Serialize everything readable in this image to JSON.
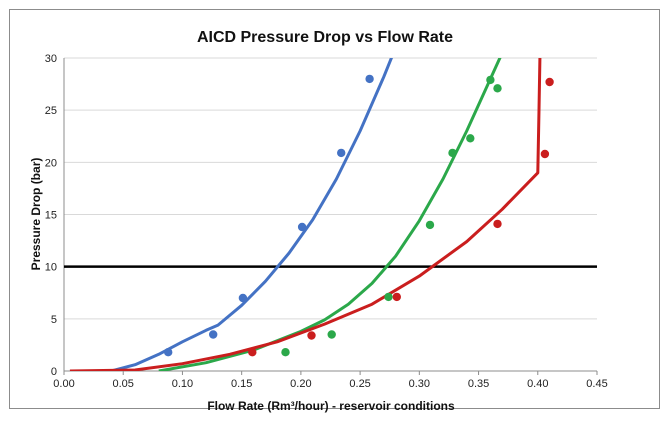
{
  "chart_data": {
    "type": "scatter",
    "title": "AICD Pressure Drop vs Flow Rate",
    "xlabel": "Flow Rate (Rm³/hour) - reservoir conditions",
    "ylabel": "Pressure Drop (bar)",
    "xlim": [
      0,
      0.45
    ],
    "ylim": [
      0,
      30
    ],
    "x_ticks": [
      "0.00",
      "0.05",
      "0.10",
      "0.15",
      "0.20",
      "0.25",
      "0.30",
      "0.35",
      "0.40",
      "0.45"
    ],
    "y_ticks": [
      "0",
      "5",
      "10",
      "15",
      "20",
      "25",
      "30"
    ],
    "grid": "horizontal",
    "legend": "none",
    "reference_line": {
      "y": 10,
      "color": "#000000"
    },
    "series": [
      {
        "color": "#4472c4",
        "points": [
          [
            0.088,
            1.8
          ],
          [
            0.126,
            3.5
          ],
          [
            0.151,
            7.0
          ],
          [
            0.201,
            13.8
          ],
          [
            0.234,
            20.9
          ],
          [
            0.258,
            28.0
          ]
        ],
        "curve": [
          [
            0.04,
            0
          ],
          [
            0.06,
            0.6
          ],
          [
            0.08,
            1.6
          ],
          [
            0.1,
            2.8
          ],
          [
            0.12,
            3.9
          ],
          [
            0.13,
            4.4
          ],
          [
            0.15,
            6.3
          ],
          [
            0.17,
            8.6
          ],
          [
            0.19,
            11.3
          ],
          [
            0.21,
            14.5
          ],
          [
            0.23,
            18.4
          ],
          [
            0.25,
            23.0
          ],
          [
            0.27,
            28.2
          ],
          [
            0.28,
            31.0
          ]
        ]
      },
      {
        "color": "#2ba84a",
        "points": [
          [
            0.187,
            1.8
          ],
          [
            0.226,
            3.5
          ],
          [
            0.274,
            7.1
          ],
          [
            0.309,
            14.0
          ],
          [
            0.328,
            20.9
          ],
          [
            0.343,
            22.3
          ],
          [
            0.36,
            27.9
          ],
          [
            0.366,
            27.1
          ]
        ],
        "curve": [
          [
            0.08,
            0
          ],
          [
            0.12,
            0.8
          ],
          [
            0.16,
            2.0
          ],
          [
            0.2,
            3.8
          ],
          [
            0.22,
            4.9
          ],
          [
            0.24,
            6.4
          ],
          [
            0.26,
            8.4
          ],
          [
            0.28,
            11.0
          ],
          [
            0.3,
            14.4
          ],
          [
            0.32,
            18.4
          ],
          [
            0.34,
            23.0
          ],
          [
            0.36,
            28.0
          ],
          [
            0.372,
            31.0
          ]
        ]
      },
      {
        "color": "#ca1e1e",
        "points": [
          [
            0.159,
            1.8
          ],
          [
            0.209,
            3.4
          ],
          [
            0.281,
            7.1
          ],
          [
            0.366,
            14.1
          ],
          [
            0.406,
            20.8
          ],
          [
            0.41,
            27.7
          ]
        ],
        "curve": [
          [
            0.005,
            0
          ],
          [
            0.06,
            0.1
          ],
          [
            0.1,
            0.7
          ],
          [
            0.14,
            1.6
          ],
          [
            0.18,
            2.8
          ],
          [
            0.22,
            4.5
          ],
          [
            0.26,
            6.4
          ],
          [
            0.3,
            9.1
          ],
          [
            0.34,
            12.4
          ],
          [
            0.37,
            15.5
          ],
          [
            0.4,
            19.0
          ],
          [
            0.401,
            25.0
          ],
          [
            0.402,
            31.0
          ]
        ]
      }
    ]
  }
}
